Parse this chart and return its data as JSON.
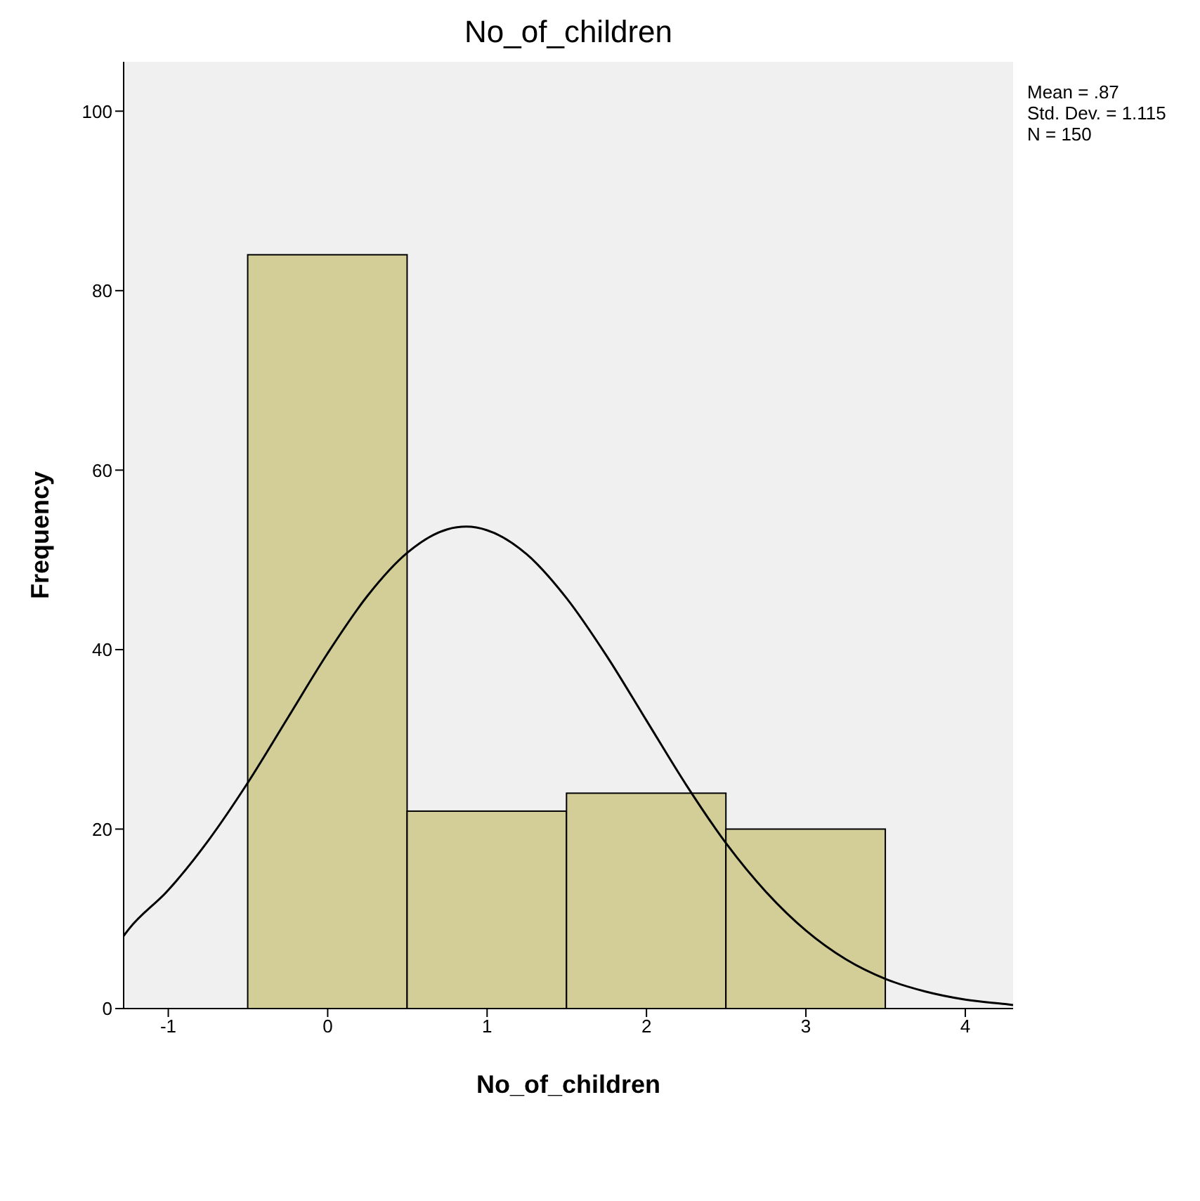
{
  "chart_data": {
    "type": "histogram",
    "title": "No_of_children",
    "xlabel": "No_of_children",
    "ylabel": "Frequency",
    "xlim": [
      -1.28,
      4.3
    ],
    "xticks": [
      -1,
      0,
      1,
      2,
      3,
      4
    ],
    "ylim": [
      0,
      105.5
    ],
    "yticks": [
      0,
      20,
      40,
      60,
      80,
      100
    ],
    "grid": false,
    "legend": false,
    "annotations": [
      "Mean = .87",
      "Std. Dev. = 1.115",
      "N = 150"
    ],
    "series": [
      {
        "bins": [
          -0.5,
          0.5,
          1.5,
          2.5,
          3.5
        ],
        "values": [
          84,
          22,
          24,
          20
        ],
        "color": "#d3ce97"
      },
      {
        "type": "line",
        "color": "#000000",
        "x": [
          -1.28,
          -1.25,
          -1,
          -0.75,
          -0.5,
          -0.25,
          0,
          0.25,
          0.5,
          0.75,
          0.87,
          1,
          1.25,
          1.5,
          1.75,
          2,
          2.25,
          2.5,
          2.75,
          3,
          3.25,
          3.5,
          3.75,
          4,
          4.25,
          4.3
        ],
        "values": [
          8.1,
          8.8,
          13.2,
          18.7,
          25.2,
          32.4,
          39.6,
          46.0,
          50.8,
          53.4,
          53.7,
          53.3,
          50.6,
          45.7,
          39.3,
          32.1,
          24.9,
          18.4,
          13.0,
          8.7,
          5.5,
          3.3,
          1.9,
          1.0,
          0.5,
          0.4
        ]
      }
    ]
  }
}
